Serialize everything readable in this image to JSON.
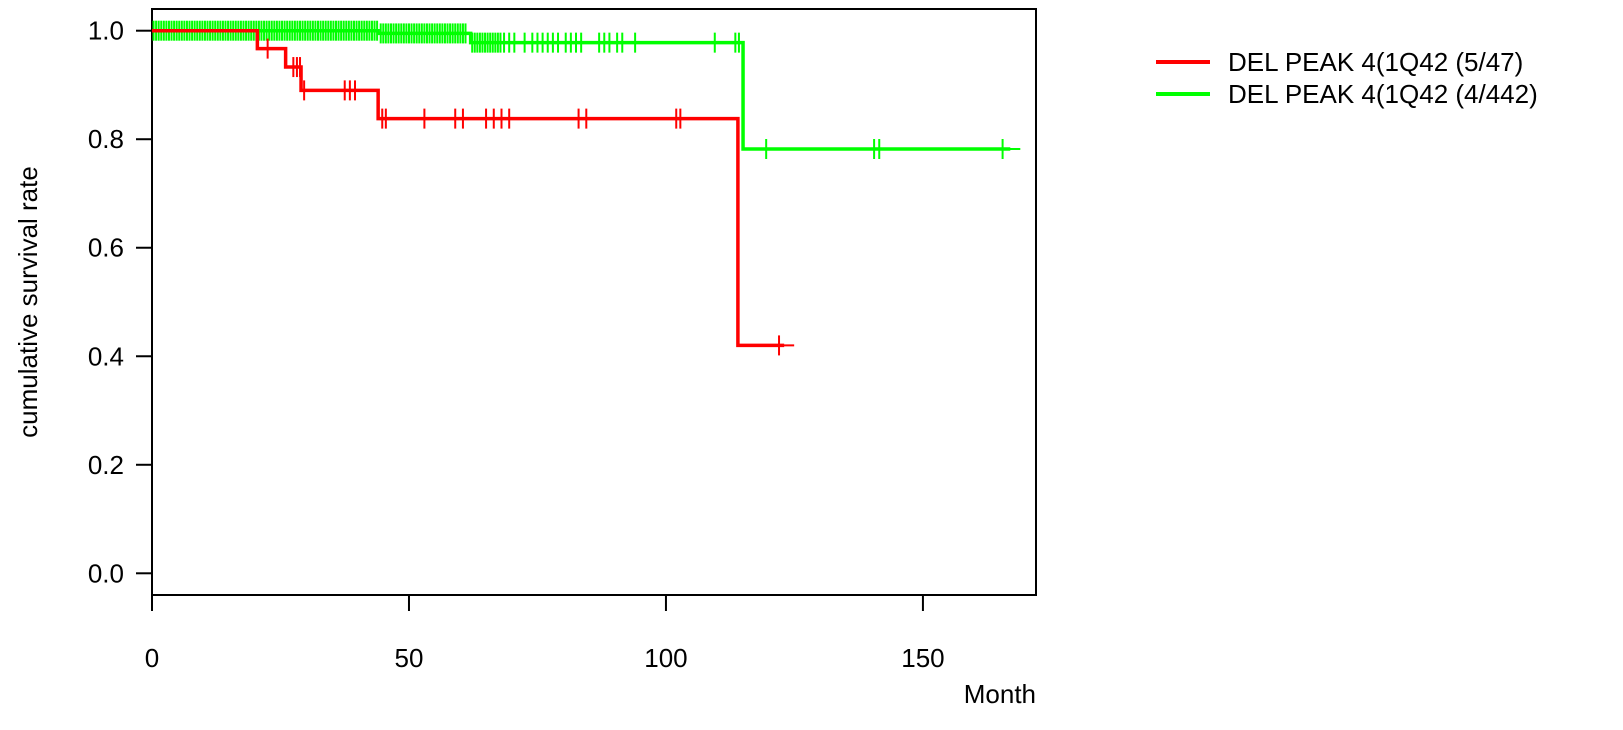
{
  "chart_data": {
    "type": "line",
    "subtype": "kaplan-meier survival curve",
    "title": "",
    "xlabel": "Month",
    "ylabel": "cumulative survival rate",
    "xlim": [
      0,
      172
    ],
    "ylim": [
      -0.04,
      1.04
    ],
    "xticks": [
      0,
      50,
      100,
      150
    ],
    "yticks": [
      0.0,
      0.2,
      0.4,
      0.6,
      0.8,
      1.0
    ],
    "xtick_labels": [
      "0",
      "50",
      "100",
      "150"
    ],
    "ytick_labels": [
      "0.0",
      "0.2",
      "0.4",
      "0.6",
      "0.8",
      "1.0"
    ],
    "grid": false,
    "legend_position": "top-right, outside plot",
    "series": [
      {
        "name": "DEL PEAK  4(1Q42 (5/47)",
        "color": "#ff0000",
        "steps": [
          [
            0,
            1.0
          ],
          [
            20.5,
            0.967
          ],
          [
            26,
            0.933
          ],
          [
            29,
            0.89
          ],
          [
            44,
            0.838
          ],
          [
            114,
            0.42
          ],
          [
            123,
            0.42
          ]
        ],
        "censor": [
          22.5,
          27.5,
          28.2,
          28.8,
          29.6,
          37.5,
          38.5,
          39.5,
          44.8,
          45.5,
          53,
          59,
          60.5,
          65,
          66.5,
          68,
          69.5,
          83,
          84.5,
          102,
          102.8,
          122
        ]
      },
      {
        "name": "DEL PEAK  4(1Q42 (4/442)",
        "color": "#00ff00",
        "steps": [
          [
            0,
            1.0
          ],
          [
            44,
            0.995
          ],
          [
            62,
            0.978
          ],
          [
            115,
            0.782
          ],
          [
            167,
            0.782
          ]
        ],
        "censor": [
          0.3,
          0.8,
          1.3,
          1.8,
          2.3,
          2.8,
          3.3,
          3.8,
          4.3,
          4.8,
          5.3,
          5.8,
          6.3,
          6.8,
          7.3,
          7.8,
          8.3,
          8.8,
          9.3,
          9.8,
          10.3,
          10.8,
          11.3,
          11.8,
          12.3,
          12.8,
          13.3,
          13.8,
          14.3,
          14.8,
          15.3,
          15.8,
          16.3,
          16.8,
          17.3,
          17.8,
          18.3,
          18.8,
          19.3,
          19.8,
          20.3,
          20.8,
          21.3,
          21.8,
          22.3,
          22.8,
          23.3,
          23.8,
          24.3,
          24.8,
          25.3,
          25.8,
          26.3,
          26.8,
          27.3,
          27.8,
          28.3,
          28.8,
          29.3,
          29.8,
          30.3,
          30.8,
          31.3,
          31.8,
          32.3,
          32.8,
          33.3,
          33.8,
          34.3,
          34.8,
          35.3,
          35.8,
          36.3,
          36.8,
          37.3,
          37.8,
          38.3,
          38.8,
          39.3,
          39.8,
          40.3,
          40.8,
          41.3,
          41.8,
          42.3,
          42.8,
          43.3,
          43.8,
          44.5,
          45,
          45.5,
          46,
          46.5,
          47,
          47.5,
          48,
          48.5,
          49,
          49.5,
          50,
          50.5,
          51,
          51.5,
          52,
          52.5,
          53,
          53.5,
          54,
          54.5,
          55,
          55.5,
          56,
          56.5,
          57,
          57.5,
          58,
          58.5,
          59,
          59.5,
          60,
          60.5,
          61,
          62.3,
          62.8,
          63.3,
          63.8,
          64.3,
          64.8,
          65.3,
          65.8,
          66.3,
          66.8,
          67.3,
          67.8,
          68.5,
          69.5,
          70.5,
          72.5,
          74,
          75,
          76,
          77,
          78,
          79,
          80.5,
          81.5,
          82.5,
          83.5,
          87,
          88,
          89,
          90.5,
          91.5,
          94,
          109.5,
          113.5,
          114.2,
          119.5,
          140.5,
          141.5,
          165.5
        ]
      }
    ]
  }
}
